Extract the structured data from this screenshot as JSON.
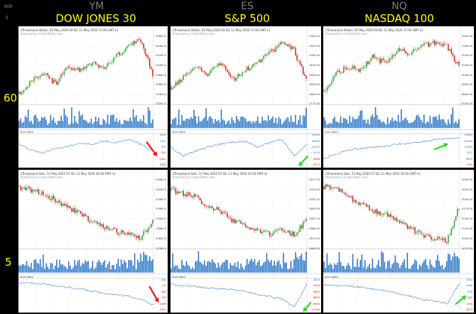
{
  "top_left": {
    "line1": "600",
    "line2": "5"
  },
  "columns": [
    {
      "symbol": "YM",
      "title": "DOW JONES 30"
    },
    {
      "symbol": "ES",
      "title": "S&P 500"
    },
    {
      "symbol": "NQ",
      "title": "NASDAQ 100"
    }
  ],
  "rows": [
    {
      "label": "60"
    },
    {
      "label": "5"
    }
  ],
  "panels": [
    {
      "header": "Cfineamana Albalis, 05 May 2020 04:00, 11 May 2020 17:00 GMT+2",
      "sub": "Powered by ClusterDelta.com",
      "delta_label": "Sum Delta",
      "price_axis": [
        "24600.0",
        "24400.0",
        "24200.0",
        "24000.0",
        "23800.0",
        "23600.0",
        "23400.0",
        "23200.0"
      ],
      "delta_axis": [
        "2493",
        "1521",
        "533",
        "-351",
        "-1347",
        "-2315"
      ],
      "delta_axis_red_from": 3
    },
    {
      "header": "Cfineamana Albalis, 05 May 2020 04:00, 11 May 2020 17:00 GMT+2",
      "sub": "Powered by ClusterDelta.com",
      "delta_label": "Sum Delta",
      "price_axis": [
        "2950.00",
        "2925.00",
        "2900.00",
        "2875.00",
        "2850.00",
        "2825.00",
        "2800.00",
        "2775.00"
      ],
      "delta_axis": [
        "25000",
        "18000",
        "11073",
        "4130",
        "-2606",
        "-9177"
      ],
      "delta_axis_red_from": 4
    },
    {
      "header": "Cfineamana Albalis, 05 May 2020 04:00, 11 May 2020 17:00 GMT+2",
      "sub": "Powered by ClusterDelta.com",
      "delta_label": "Sum Delta",
      "price_axis": [
        "9400.00",
        "9300.00",
        "9200.00",
        "9100.00",
        "9000.00",
        "8900.00",
        "8800.00",
        "8700.00"
      ],
      "delta_axis": [
        "19059",
        "15000",
        "11063",
        "7101",
        "3604",
        "-393"
      ],
      "delta_axis_red_from": 5
    },
    {
      "header": "Cfineamana Swis, 11 May 2020 07:56, 11 May 2020 16:59 GMT+2",
      "sub": "Powered by ClusterDelta.com",
      "delta_label": "Sum Delta",
      "price_axis": [
        "24060.0",
        "24020.0",
        "23980.0",
        "23940.0",
        "23900.0",
        "23860.0",
        "23820.0",
        "23780.0"
      ],
      "delta_axis": [
        "282",
        "-51",
        "-384",
        "-735",
        "-1086",
        "-1437"
      ],
      "delta_axis_red_from": 1
    },
    {
      "header": "Cfineamana Swis, 11 May 2020 07:56, 11 May 2020 16:59 GMT+2",
      "sub": "Powered by ClusterDelta.com",
      "delta_label": "Sum Delta",
      "price_axis": [
        "2917.50",
        "2910.00",
        "2902.50",
        "2895.00",
        "2887.50",
        "2880.00",
        "2872.50",
        "2865.00"
      ],
      "delta_axis": [
        "1824",
        "-1000",
        "-3840",
        "-6625",
        "-9390",
        "-12140"
      ],
      "delta_axis_red_from": 1
    },
    {
      "header": "Cfineamana Swis, 11 May 2020 07:56, 11 May 2020 16:59 GMT+2",
      "sub": "Powered by ClusterDelta.com",
      "delta_label": "Sum Delta",
      "price_axis": [
        "9250.00",
        "9225.00",
        "9200.00",
        "9175.00",
        "9150.00",
        "9125.00",
        "9100.00",
        "9075.00"
      ],
      "delta_axis": [
        "1814",
        "1148",
        "478",
        "-182",
        "-835",
        "-1473"
      ],
      "delta_axis_red_from": 3
    }
  ],
  "colors": {
    "bull": "#2e9e2e",
    "bear": "#cc1f1f",
    "volume": "#1f6fc4",
    "delta_line": "#3a7fd5",
    "arrow_red": "#ff1010",
    "arrow_green": "#22dd22"
  }
}
